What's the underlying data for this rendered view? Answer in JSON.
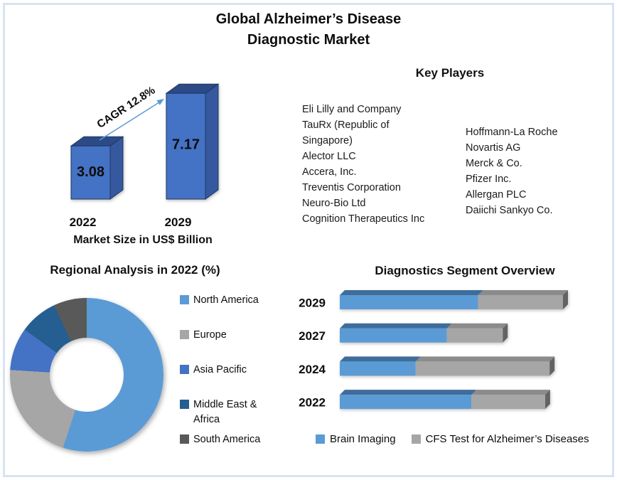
{
  "page": {
    "title_line1": "Global Alzheimer’s Disease",
    "title_line2": "Diagnostic Market"
  },
  "key_players": {
    "title": "Key Players",
    "column1": [
      "Eli Lilly and Company",
      "TauRx (Republic of Singapore)",
      "Alector LLC",
      "Accera, Inc.",
      "Treventis Corporation",
      "Neuro-Bio Ltd",
      "Cognition Therapeutics Inc"
    ],
    "column2": [
      "Hoffmann-La Roche",
      "Novartis AG",
      "Merck & Co.",
      "Pfizer Inc.",
      "Allergan PLC",
      "Daiichi Sankyo Co."
    ]
  },
  "chart_data": [
    {
      "id": "market_size",
      "type": "bar",
      "title": "Market Size in US$ Billion",
      "categories": [
        "2022",
        "2029"
      ],
      "values": [
        3.08,
        7.17
      ],
      "annotation": "CAGR 12.8%",
      "bar_color": "#4472C4",
      "bar_top_color": "#2B4A86",
      "bar_side_color": "#35589E",
      "arrow_color": "#5B9BD5"
    },
    {
      "id": "regional_analysis",
      "type": "pie",
      "donut": true,
      "title": "Regional Analysis in 2022 (%)",
      "labels": [
        "North America",
        "Europe",
        "Asia Pacific",
        "Middle East & Africa",
        "South America"
      ],
      "values": [
        55,
        21,
        9,
        8,
        7
      ],
      "colors": [
        "#5B9BD5",
        "#A6A6A6",
        "#4472C4",
        "#255E91",
        "#595959"
      ],
      "legend_position": "right"
    },
    {
      "id": "diagnostics_segment",
      "type": "bar",
      "orientation": "horizontal",
      "stacked": true,
      "title": "Diagnostics Segment Overview",
      "categories": [
        "2029",
        "2027",
        "2024",
        "2022"
      ],
      "series": [
        {
          "name": "Brain Imaging",
          "color": "#5B9BD5",
          "top_color": "#3E6D9C",
          "values": [
            62,
            48,
            34,
            59
          ]
        },
        {
          "name": "CFS Test for Alzheimer’s Diseases",
          "color": "#A6A6A6",
          "top_color": "#8B8B8B",
          "values": [
            38,
            25,
            60,
            33
          ]
        }
      ],
      "cap_color": "#636363",
      "legend_position": "bottom"
    }
  ]
}
